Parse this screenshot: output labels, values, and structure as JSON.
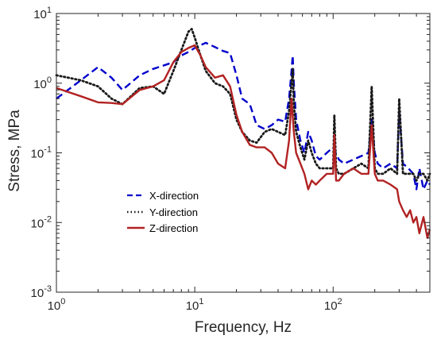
{
  "chart_data": {
    "type": "line",
    "xscale": "log",
    "yscale": "log",
    "xlim": [
      1,
      500
    ],
    "ylim": [
      0.001,
      10
    ],
    "xlabel": "Frequency, Hz",
    "ylabel": "Stress, MPa",
    "x_ticks": [
      {
        "base": "10",
        "exp": "0",
        "value": 1
      },
      {
        "base": "10",
        "exp": "1",
        "value": 10
      },
      {
        "base": "10",
        "exp": "2",
        "value": 100
      }
    ],
    "y_ticks": [
      {
        "base": "10",
        "exp": "-3",
        "value": 0.001
      },
      {
        "base": "10",
        "exp": "-2",
        "value": 0.01
      },
      {
        "base": "10",
        "exp": "-1",
        "value": 0.1
      },
      {
        "base": "10",
        "exp": "0",
        "value": 1
      },
      {
        "base": "10",
        "exp": "1",
        "value": 10
      }
    ],
    "grid": false,
    "legend_position": "center-left",
    "series": [
      {
        "name": "X-direction",
        "color": "#0000cc",
        "dash": "dashed",
        "x": [
          1,
          1.5,
          2,
          2.5,
          3,
          4,
          5,
          6,
          7,
          8,
          9,
          10,
          11,
          12,
          14,
          16,
          18,
          20,
          22,
          25,
          28,
          32,
          36,
          40,
          45,
          48,
          50,
          51,
          52,
          54,
          58,
          62,
          66,
          70,
          75,
          80,
          90,
          100,
          110,
          120,
          140,
          160,
          180,
          190,
          200,
          210,
          230,
          260,
          290,
          300,
          320,
          350,
          380,
          400,
          420,
          450,
          480,
          500
        ],
        "y": [
          0.6,
          1.1,
          1.7,
          1.2,
          0.8,
          1.3,
          1.6,
          1.8,
          2.0,
          2.5,
          2.8,
          3.2,
          3.5,
          3.8,
          3.3,
          2.9,
          2.7,
          1.3,
          0.6,
          0.5,
          0.25,
          0.22,
          0.25,
          0.3,
          0.28,
          0.6,
          1.5,
          2.5,
          1.0,
          0.3,
          0.15,
          0.1,
          0.2,
          0.15,
          0.09,
          0.08,
          0.1,
          0.12,
          0.08,
          0.07,
          0.08,
          0.09,
          0.1,
          0.3,
          0.1,
          0.07,
          0.06,
          0.07,
          0.06,
          0.4,
          0.07,
          0.06,
          0.05,
          0.03,
          0.06,
          0.03,
          0.04,
          0.035
        ]
      },
      {
        "name": "Y-direction",
        "color": "#1a1a1a",
        "dash": "dotted",
        "x": [
          1,
          1.5,
          2,
          2.5,
          3,
          4,
          5,
          6,
          7,
          8,
          9,
          9.5,
          10,
          11,
          12,
          14,
          16,
          18,
          20,
          22,
          25,
          28,
          32,
          36,
          40,
          45,
          48,
          50,
          51,
          52,
          54,
          58,
          62,
          66,
          70,
          75,
          80,
          90,
          100,
          102,
          105,
          110,
          120,
          140,
          160,
          180,
          190,
          200,
          210,
          230,
          260,
          290,
          300,
          320,
          350,
          380,
          400,
          420,
          450,
          480,
          500
        ],
        "y": [
          1.3,
          1.1,
          0.9,
          0.6,
          0.5,
          0.85,
          0.9,
          0.7,
          1.5,
          3.0,
          5.5,
          6.0,
          4.5,
          2.5,
          1.5,
          1.0,
          0.9,
          0.7,
          0.3,
          0.2,
          0.15,
          0.14,
          0.2,
          0.22,
          0.2,
          0.18,
          0.4,
          1.0,
          1.6,
          0.5,
          0.2,
          0.12,
          0.08,
          0.15,
          0.1,
          0.07,
          0.06,
          0.06,
          0.06,
          0.35,
          0.06,
          0.05,
          0.05,
          0.06,
          0.07,
          0.06,
          0.9,
          0.06,
          0.05,
          0.05,
          0.06,
          0.05,
          0.6,
          0.05,
          0.05,
          0.05,
          0.04,
          0.05,
          0.05,
          0.04,
          0.05
        ]
      },
      {
        "name": "Z-direction",
        "color": "#b22222",
        "dash": "solid",
        "x": [
          1,
          1.5,
          2,
          2.5,
          3,
          4,
          5,
          6,
          7,
          8,
          9,
          10,
          11,
          12,
          14,
          16,
          18,
          20,
          22,
          25,
          28,
          32,
          36,
          40,
          45,
          48,
          50,
          52,
          54,
          58,
          62,
          66,
          70,
          75,
          80,
          90,
          100,
          102,
          105,
          110,
          120,
          140,
          160,
          180,
          190,
          200,
          210,
          230,
          260,
          290,
          300,
          320,
          340,
          360,
          380,
          400,
          420,
          450,
          480,
          500
        ],
        "y": [
          0.85,
          0.65,
          0.53,
          0.52,
          0.5,
          0.8,
          0.9,
          1.1,
          2.0,
          2.8,
          3.2,
          3.5,
          2.5,
          1.7,
          1.2,
          1.3,
          0.9,
          0.35,
          0.2,
          0.13,
          0.12,
          0.12,
          0.1,
          0.07,
          0.06,
          0.15,
          0.6,
          0.2,
          0.1,
          0.07,
          0.05,
          0.03,
          0.04,
          0.035,
          0.04,
          0.05,
          0.05,
          0.18,
          0.04,
          0.04,
          0.05,
          0.06,
          0.05,
          0.05,
          0.25,
          0.05,
          0.04,
          0.04,
          0.035,
          0.03,
          0.02,
          0.015,
          0.012,
          0.015,
          0.01,
          0.012,
          0.007,
          0.012,
          0.006,
          0.008
        ]
      }
    ]
  }
}
